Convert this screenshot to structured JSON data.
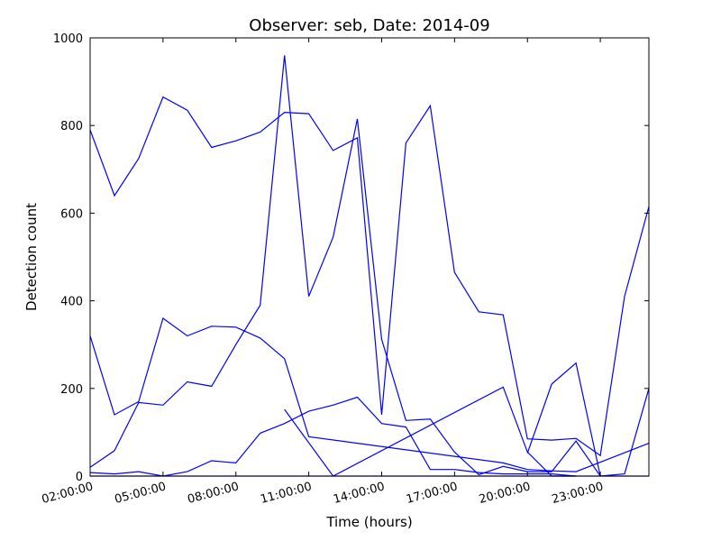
{
  "chart_data": {
    "type": "line",
    "title": "Observer: seb, Date: 2014-09",
    "xlabel": "Time (hours)",
    "ylabel": "Detection count",
    "xlim": [
      2,
      25
    ],
    "ylim": [
      0,
      1000
    ],
    "x_ticks": [
      {
        "value": 2,
        "label": "02:00:00"
      },
      {
        "value": 5,
        "label": "05:00:00"
      },
      {
        "value": 8,
        "label": "08:00:00"
      },
      {
        "value": 11,
        "label": "11:00:00"
      },
      {
        "value": 14,
        "label": "14:00:00"
      },
      {
        "value": 17,
        "label": "17:00:00"
      },
      {
        "value": 20,
        "label": "20:00:00"
      },
      {
        "value": 23,
        "label": "23:00:00"
      }
    ],
    "y_ticks": [
      0,
      200,
      400,
      600,
      800,
      1000
    ],
    "grid": false,
    "line_color": "#0000ff",
    "series": [
      {
        "points": [
          [
            2,
            790
          ],
          [
            3,
            640
          ],
          [
            4,
            725
          ],
          [
            5,
            865
          ],
          [
            6,
            835
          ],
          [
            7,
            750
          ],
          [
            8,
            765
          ],
          [
            9,
            785
          ],
          [
            10,
            830
          ],
          [
            11,
            827
          ],
          [
            12,
            743
          ],
          [
            13,
            772
          ],
          [
            14,
            140
          ],
          [
            15,
            760
          ],
          [
            16,
            845
          ],
          [
            17,
            465
          ],
          [
            18,
            375
          ],
          [
            19,
            368
          ],
          [
            20,
            85
          ],
          [
            21,
            82
          ],
          [
            22,
            86
          ],
          [
            23,
            47
          ],
          [
            24,
            410
          ],
          [
            25,
            615
          ]
        ]
      },
      {
        "points": [
          [
            2,
            320
          ],
          [
            3,
            140
          ],
          [
            4,
            170
          ],
          [
            5,
            360
          ],
          [
            6,
            320
          ],
          [
            7,
            342
          ],
          [
            8,
            340
          ],
          [
            9,
            315
          ],
          [
            10,
            268
          ],
          [
            11,
            90
          ],
          [
            19,
            30
          ],
          [
            20,
            15
          ],
          [
            21,
            12
          ],
          [
            22,
            10
          ],
          [
            25,
            75
          ]
        ]
      },
      {
        "points": [
          [
            2,
            20
          ],
          [
            3,
            58
          ],
          [
            4,
            168
          ],
          [
            5,
            162
          ],
          [
            6,
            215
          ],
          [
            7,
            205
          ],
          [
            8,
            300
          ],
          [
            9,
            390
          ],
          [
            10,
            960
          ],
          [
            11,
            410
          ],
          [
            12,
            545
          ],
          [
            13,
            815
          ],
          [
            14,
            312
          ],
          [
            15,
            127
          ],
          [
            16,
            130
          ],
          [
            17,
            55
          ],
          [
            18,
            3
          ],
          [
            19,
            22
          ],
          [
            20,
            10
          ],
          [
            21,
            10
          ],
          [
            22,
            80
          ],
          [
            23,
            0
          ],
          [
            24,
            5
          ],
          [
            25,
            200
          ]
        ]
      },
      {
        "points": [
          [
            2,
            0
          ],
          [
            4,
            0
          ],
          [
            6,
            0
          ],
          [
            10,
            0
          ],
          [
            12,
            0
          ],
          [
            25,
            0
          ]
        ]
      },
      {
        "points": [
          [
            2,
            8
          ],
          [
            3,
            5
          ],
          [
            4,
            10
          ],
          [
            5,
            0
          ],
          [
            6,
            10
          ],
          [
            7,
            35
          ],
          [
            8,
            30
          ],
          [
            9,
            98
          ],
          [
            10,
            120
          ],
          [
            11,
            148
          ],
          [
            12,
            162
          ],
          [
            13,
            180
          ],
          [
            14,
            120
          ],
          [
            15,
            112
          ],
          [
            16,
            15
          ],
          [
            17,
            15
          ],
          [
            18,
            8
          ],
          [
            19,
            5
          ],
          [
            20,
            5
          ],
          [
            21,
            5
          ],
          [
            22,
            0
          ]
        ]
      },
      {
        "points": [
          [
            10,
            152
          ],
          [
            12,
            0
          ],
          [
            19,
            203
          ],
          [
            20,
            55
          ],
          [
            21,
            0
          ],
          [
            22,
            0
          ]
        ]
      },
      {
        "points": [
          [
            20,
            52
          ],
          [
            21,
            210
          ],
          [
            22,
            258
          ],
          [
            23,
            0
          ]
        ]
      }
    ]
  }
}
